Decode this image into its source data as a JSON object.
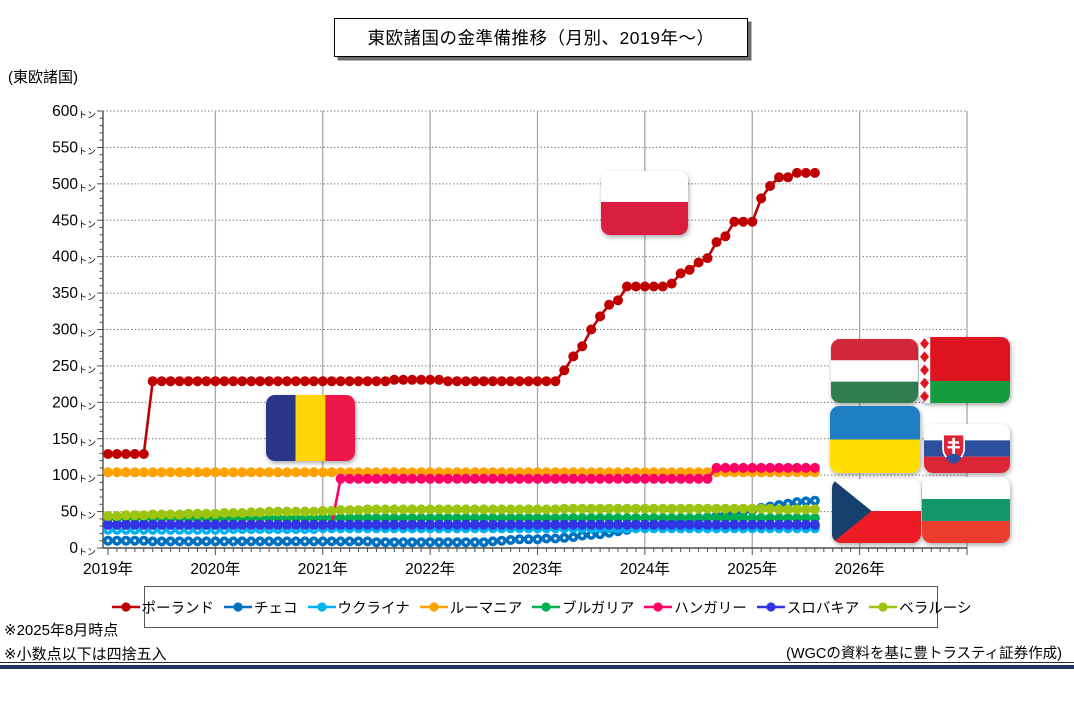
{
  "title": "東欧諸国の金準備推移（月別、2019年〜）",
  "y_axis_note": "(東欧諸国)",
  "notes": {
    "as_of": "※2025年8月時点",
    "rounding": "※小数点以下は四捨五入"
  },
  "source": "(WGCの資料を基に豊トラスティ証券作成)",
  "flags": [
    "poland-flag-icon",
    "romania-flag-icon",
    "hungary-flag-icon",
    "belarus-flag-icon",
    "ukraine-flag-icon",
    "slovakia-flag-icon",
    "czech-flag-icon",
    "bulgaria-flag-icon"
  ],
  "chart_data": {
    "type": "line",
    "title": "東欧諸国の金準備推移（月別、2019年〜）",
    "unit": "トン",
    "frequency": "monthly",
    "start": "2019-01",
    "end": "2025-08",
    "ylim": [
      0,
      600
    ],
    "ytick_step": 50,
    "ytick_minor_step": 10,
    "grid": true,
    "legend_position": "bottom",
    "x_tick_labels": [
      "2019年",
      "2020年",
      "2021年",
      "2022年",
      "2023年",
      "2024年",
      "2025年",
      "2026年"
    ],
    "series": [
      {
        "id": "poland",
        "label": "ポーランド",
        "color": "#C00000",
        "white_center": false,
        "values": [
          129,
          129,
          129,
          129,
          129,
          229,
          229,
          229,
          229,
          229,
          229,
          229,
          229,
          229,
          229,
          229,
          229,
          229,
          229,
          229,
          229,
          229,
          229,
          229,
          229,
          229,
          229,
          229,
          229,
          229,
          229,
          229,
          231,
          231,
          231,
          231,
          231,
          231,
          229,
          229,
          229,
          229,
          229,
          229,
          229,
          229,
          229,
          229,
          229,
          229,
          229,
          244,
          263,
          277,
          300,
          318,
          334,
          340,
          359,
          359,
          359,
          359,
          359,
          363,
          377,
          382,
          392,
          398,
          420,
          428,
          448,
          448,
          448,
          480,
          497,
          509,
          509,
          515,
          515,
          515
        ]
      },
      {
        "id": "czech",
        "label": "チェコ",
        "color": "#0070C0",
        "white_center": true,
        "values": [
          10,
          10,
          10,
          10,
          10,
          9,
          9,
          9,
          9,
          9,
          9,
          9,
          9,
          9,
          9,
          9,
          9,
          9,
          9,
          9,
          9,
          9,
          9,
          9,
          9,
          9,
          9,
          9,
          9,
          9,
          8,
          8,
          8,
          8,
          8,
          8,
          8,
          8,
          8,
          8,
          8,
          8,
          8,
          9,
          10,
          11,
          12,
          12,
          12,
          13,
          13,
          14,
          15,
          17,
          18,
          19,
          21,
          23,
          25,
          28,
          29,
          31,
          33,
          35,
          36,
          38,
          40,
          42,
          44,
          46,
          48,
          50,
          52,
          55,
          57,
          59,
          61,
          63,
          64,
          65
        ]
      },
      {
        "id": "ukraine",
        "label": "ウクライナ",
        "color": "#00B0F0",
        "white_center": true,
        "values": [
          25,
          25,
          25,
          25,
          25,
          25,
          25,
          25,
          25,
          25,
          25,
          25,
          25,
          25,
          26,
          26,
          26,
          26,
          26,
          26,
          26,
          26,
          26,
          26,
          27,
          27,
          27,
          27,
          27,
          27,
          27,
          27,
          27,
          27,
          27,
          27,
          27,
          27,
          27,
          27,
          27,
          27,
          27,
          27,
          27,
          27,
          27,
          27,
          27,
          27,
          27,
          27,
          27,
          27,
          27,
          27,
          27,
          27,
          27,
          27,
          27,
          27,
          27,
          27,
          27,
          27,
          27,
          27,
          27,
          27,
          27,
          27,
          27,
          27,
          27,
          27,
          27,
          27,
          27,
          27
        ]
      },
      {
        "id": "romania",
        "label": "ルーマニア",
        "color": "#FFA200",
        "white_center": false,
        "values": [
          104,
          104,
          104,
          104,
          104,
          104,
          104,
          104,
          104,
          104,
          104,
          104,
          104,
          104,
          104,
          104,
          104,
          104,
          104,
          104,
          104,
          104,
          104,
          104,
          104,
          104,
          104,
          104,
          104,
          104,
          104,
          104,
          104,
          104,
          104,
          104,
          104,
          104,
          104,
          104,
          104,
          104,
          104,
          104,
          104,
          104,
          104,
          104,
          104,
          104,
          104,
          104,
          104,
          104,
          104,
          104,
          104,
          104,
          104,
          104,
          104,
          104,
          104,
          104,
          104,
          104,
          104,
          104,
          104,
          104,
          104,
          104,
          104,
          104,
          104,
          104,
          104,
          104,
          104,
          104
        ]
      },
      {
        "id": "bulgaria",
        "label": "ブルガリア",
        "color": "#00B050",
        "white_center": false,
        "values": [
          41,
          41,
          41,
          41,
          41,
          41,
          41,
          41,
          41,
          41,
          41,
          41,
          41,
          41,
          41,
          41,
          41,
          41,
          41,
          41,
          41,
          41,
          41,
          41,
          41,
          41,
          41,
          41,
          41,
          41,
          41,
          41,
          41,
          41,
          41,
          41,
          41,
          41,
          41,
          41,
          41,
          41,
          41,
          41,
          41,
          41,
          41,
          41,
          41,
          41,
          41,
          41,
          41,
          41,
          41,
          41,
          41,
          41,
          41,
          41,
          41,
          41,
          41,
          41,
          41,
          41,
          41,
          41,
          41,
          41,
          41,
          41,
          41,
          41,
          41,
          41,
          41,
          41,
          41,
          41
        ]
      },
      {
        "id": "hungary",
        "label": "ハンガリー",
        "color": "#FF0066",
        "white_center": false,
        "values": [
          32,
          32,
          32,
          32,
          32,
          32,
          32,
          32,
          32,
          32,
          32,
          32,
          32,
          32,
          32,
          32,
          32,
          32,
          32,
          32,
          32,
          32,
          32,
          32,
          32,
          32,
          95,
          95,
          95,
          95,
          95,
          95,
          95,
          95,
          95,
          95,
          95,
          95,
          95,
          95,
          95,
          95,
          95,
          95,
          95,
          95,
          95,
          95,
          95,
          95,
          95,
          95,
          95,
          95,
          95,
          95,
          95,
          95,
          95,
          95,
          95,
          95,
          95,
          95,
          95,
          95,
          95,
          95,
          110,
          110,
          110,
          110,
          110,
          110,
          110,
          110,
          110,
          110,
          110,
          110
        ]
      },
      {
        "id": "slovakia",
        "label": "スロバキア",
        "color": "#3333E6",
        "white_center": false,
        "values": [
          32,
          32,
          32,
          32,
          32,
          32,
          32,
          32,
          32,
          32,
          32,
          32,
          32,
          32,
          32,
          32,
          32,
          32,
          32,
          32,
          32,
          32,
          32,
          32,
          32,
          32,
          32,
          32,
          32,
          32,
          32,
          32,
          32,
          32,
          32,
          32,
          32,
          32,
          32,
          32,
          32,
          32,
          32,
          32,
          32,
          32,
          32,
          32,
          32,
          32,
          32,
          32,
          32,
          32,
          32,
          32,
          32,
          32,
          32,
          32,
          32,
          32,
          32,
          32,
          32,
          32,
          32,
          32,
          32,
          32,
          32,
          32,
          32,
          32,
          32,
          32,
          32,
          32,
          32,
          32
        ]
      },
      {
        "id": "belarus",
        "label": "ベラルーシ",
        "color": "#9DC410",
        "white_center": false,
        "values": [
          44,
          44,
          45,
          45,
          45,
          46,
          46,
          46,
          46,
          47,
          47,
          47,
          47,
          48,
          48,
          48,
          49,
          49,
          50,
          50,
          50,
          50,
          50,
          50,
          51,
          51,
          52,
          52,
          52,
          53,
          53,
          53,
          53,
          53,
          53,
          53,
          53,
          53,
          53,
          53,
          53,
          53,
          53,
          53,
          53,
          53,
          53,
          53,
          53,
          53,
          53,
          54,
          54,
          54,
          54,
          54,
          54,
          54,
          54,
          54,
          54,
          54,
          54,
          54,
          54,
          54,
          54,
          54,
          54,
          54,
          54,
          54,
          54,
          54,
          54,
          53,
          53,
          53,
          53,
          53
        ]
      }
    ]
  }
}
